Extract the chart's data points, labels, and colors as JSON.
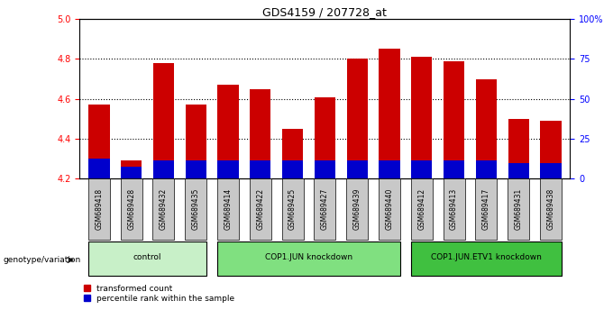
{
  "title": "GDS4159 / 207728_at",
  "samples": [
    "GSM689418",
    "GSM689428",
    "GSM689432",
    "GSM689435",
    "GSM689414",
    "GSM689422",
    "GSM689425",
    "GSM689427",
    "GSM689439",
    "GSM689440",
    "GSM689412",
    "GSM689413",
    "GSM689417",
    "GSM689431",
    "GSM689438"
  ],
  "red_values": [
    4.57,
    4.29,
    4.78,
    4.57,
    4.67,
    4.65,
    4.45,
    4.61,
    4.8,
    4.85,
    4.81,
    4.79,
    4.7,
    4.5,
    4.49
  ],
  "blue_values": [
    0.1,
    0.06,
    0.09,
    0.09,
    0.09,
    0.09,
    0.09,
    0.09,
    0.09,
    0.09,
    0.09,
    0.09,
    0.09,
    0.08,
    0.08
  ],
  "ymin": 4.2,
  "ymax": 5.0,
  "groups": [
    {
      "label": "control",
      "start": 0,
      "end": 4,
      "color": "#c8f0c8"
    },
    {
      "label": "COP1.JUN knockdown",
      "start": 4,
      "end": 10,
      "color": "#80e080"
    },
    {
      "label": "COP1.JUN.ETV1 knockdown",
      "start": 10,
      "end": 15,
      "color": "#40c040"
    }
  ],
  "yticks_left": [
    4.2,
    4.4,
    4.6,
    4.8,
    5.0
  ],
  "yticks_right": [
    0,
    25,
    50,
    75,
    100
  ],
  "red_color": "#cc0000",
  "blue_color": "#0000cc",
  "bar_bg_color": "#c8c8c8",
  "grid_color": "#000000",
  "legend_red": "transformed count",
  "legend_blue": "percentile rank within the sample",
  "genotype_label": "genotype/variation",
  "bar_width": 0.65
}
